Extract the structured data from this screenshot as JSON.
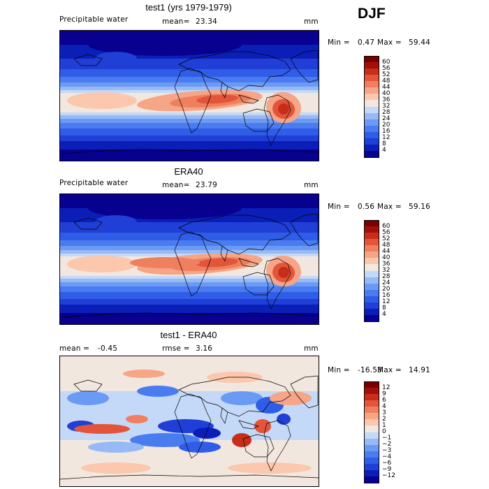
{
  "season": "DJF",
  "panels": [
    {
      "title": "test1 (yrs 1979-1979)",
      "variable": "Precipitable water",
      "stat_label": "mean=",
      "stat_value": "23.34",
      "units": "mm",
      "min_label": "Min =",
      "min_value": "0.47",
      "max_label": "Max =",
      "max_value": "59.44",
      "colorbar_labels": [
        "60",
        "56",
        "52",
        "48",
        "44",
        "40",
        "36",
        "32",
        "28",
        "24",
        "20",
        "16",
        "12",
        "8",
        "4"
      ]
    },
    {
      "title": "ERA40",
      "variable": "Precipitable water",
      "stat_label": "mean=",
      "stat_value": "23.79",
      "units": "mm",
      "min_label": "Min =",
      "min_value": "0.56",
      "max_label": "Max =",
      "max_value": "59.16",
      "colorbar_labels": [
        "60",
        "56",
        "52",
        "48",
        "44",
        "40",
        "36",
        "32",
        "28",
        "24",
        "20",
        "16",
        "12",
        "8",
        "4"
      ]
    },
    {
      "title": "test1 - ERA40",
      "variable": "mean =",
      "stat_value_left": "-0.45",
      "stat_label": "rmse =",
      "stat_value": "3.16",
      "units": "mm",
      "min_label": "Min =",
      "min_value": "-16.53",
      "max_label": "Max =",
      "max_value": "14.91",
      "colorbar_labels": [
        "12",
        "9",
        "6",
        "4",
        "3",
        "2",
        "1",
        "0",
        "−1",
        "−2",
        "−3",
        "−4",
        "−6",
        "−9",
        "−12"
      ]
    }
  ],
  "chart_data": [
    {
      "type": "heatmap",
      "title": "test1 (yrs 1979-1979)",
      "ylabel": "",
      "xlabel": "",
      "units": "mm",
      "mean": 23.34,
      "min": 0.47,
      "max": 59.44,
      "levels": [
        4,
        8,
        12,
        16,
        20,
        24,
        28,
        32,
        36,
        40,
        44,
        48,
        52,
        56,
        60
      ],
      "colors": [
        "#08008f",
        "#0b1fb8",
        "#1f3fd6",
        "#2f5de8",
        "#4a7cf0",
        "#6b9af4",
        "#97baf6",
        "#c4d8f8",
        "#f2e7df",
        "#fbc7ad",
        "#f6a586",
        "#ef7f5e",
        "#e2553a",
        "#c72e1a",
        "#a50f0a",
        "#7a0000"
      ]
    },
    {
      "type": "heatmap",
      "title": "ERA40",
      "units": "mm",
      "mean": 23.79,
      "min": 0.56,
      "max": 59.16,
      "levels": [
        4,
        8,
        12,
        16,
        20,
        24,
        28,
        32,
        36,
        40,
        44,
        48,
        52,
        56,
        60
      ],
      "colors": [
        "#08008f",
        "#0b1fb8",
        "#1f3fd6",
        "#2f5de8",
        "#4a7cf0",
        "#6b9af4",
        "#97baf6",
        "#c4d8f8",
        "#f2e7df",
        "#fbc7ad",
        "#f6a586",
        "#ef7f5e",
        "#e2553a",
        "#c72e1a",
        "#a50f0a",
        "#7a0000"
      ]
    },
    {
      "type": "heatmap",
      "title": "test1 - ERA40",
      "units": "mm",
      "mean": -0.45,
      "rmse": 3.16,
      "min": -16.53,
      "max": 14.91,
      "levels": [
        -12,
        -9,
        -6,
        -4,
        -3,
        -2,
        -1,
        0,
        1,
        2,
        3,
        4,
        6,
        9,
        12
      ],
      "colors": [
        "#08008f",
        "#0b1fb8",
        "#1f3fd6",
        "#2f5de8",
        "#4a7cf0",
        "#6b9af4",
        "#97baf6",
        "#c4d8f8",
        "#f2e7df",
        "#fbc7ad",
        "#f6a586",
        "#ef7f5e",
        "#e2553a",
        "#c72e1a",
        "#a50f0a",
        "#7a0000"
      ]
    }
  ]
}
